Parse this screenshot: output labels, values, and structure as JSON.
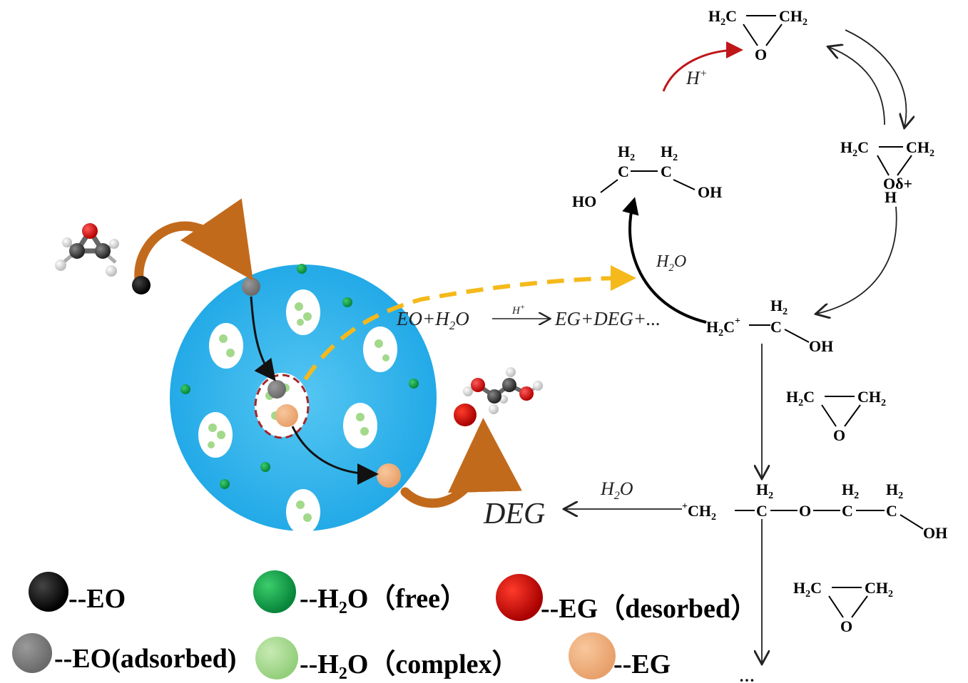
{
  "colors": {
    "sphere": "#2bb0ea",
    "eo": "#000000",
    "eo_adsorbed": "#7a7a7a",
    "h2o_free": "#0fa040",
    "h2o_complex": "#a3d98b",
    "eg_desorbed": "#d40000",
    "eg": "#f0b27c",
    "arrow_brown": "#c26a1c",
    "arrow_dash": "#f5b91b",
    "arrow_red": "#c0161a"
  },
  "legend": {
    "eo": "--EO",
    "eo_adsorbed": "--EO(adsorbed)",
    "h2o_free_a": "--H",
    "h2o_free_sub": "2",
    "h2o_free_b": "O（free）",
    "h2o_complex_a": "--H",
    "h2o_complex_sub": "2",
    "h2o_complex_b": "O（complex）",
    "eg_desorbed": "--EG（desorbed）",
    "eg": "--EG"
  },
  "reaction": {
    "left_a": "EO+H",
    "left_sub": "2",
    "left_b": "O",
    "catalyst": "H",
    "catalyst_sup": "+",
    "right": "EG+DEG+..."
  },
  "mechanism": {
    "proton": "H",
    "proton_sup": "+",
    "water_a": "H",
    "water_sub": "2",
    "water_b": "O",
    "water2_a": "H",
    "water2_sub": "2",
    "water2_b": "O",
    "deg": "DEG",
    "ellipsis": "…",
    "oxygen": "O",
    "oxonium": "Oδ+",
    "oxonium_h": "H",
    "ho": "HO",
    "oh": "OH",
    "h2c": "H",
    "ch2": "CH",
    "c": "C",
    "sub2": "2",
    "plus": "+"
  }
}
